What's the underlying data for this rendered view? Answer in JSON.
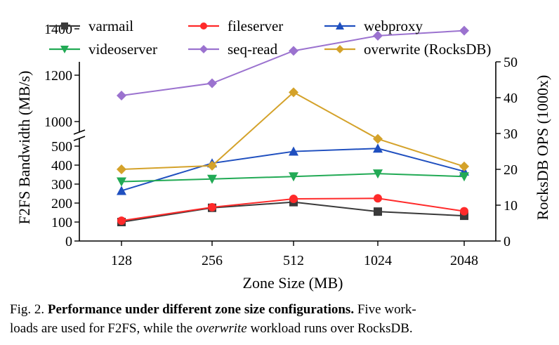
{
  "chart_data": {
    "type": "line",
    "x": [
      128,
      256,
      512,
      1024,
      2048
    ],
    "x_tick_labels": [
      "128",
      "256",
      "512",
      "1024",
      "2048"
    ],
    "xlabel": "Zone Size (MB)",
    "ylabel_left": "F2FS Bandwidth (MB/s)",
    "ylabel_right": "RocksDB OPS (1000x)",
    "y_left_lower_range": [
      0,
      520
    ],
    "y_left_upper_range": [
      950,
      1450
    ],
    "y_left_axis_break": [
      520,
      950
    ],
    "y_left_lower_ticks": [
      0,
      100,
      200,
      300,
      400,
      500
    ],
    "y_left_upper_ticks": [
      1000,
      1200,
      1400
    ],
    "y_right_range": [
      0,
      50
    ],
    "y_right_ticks": [
      0,
      10,
      20,
      30,
      40,
      50
    ],
    "legend_position": "top",
    "grid": false,
    "series": [
      {
        "name": "varmail",
        "axis": "left",
        "color": "#3a3a3a",
        "marker": "square",
        "values": [
          100,
          175,
          205,
          155,
          133
        ]
      },
      {
        "name": "fileserver",
        "axis": "left",
        "color": "#ff2a2a",
        "marker": "circle",
        "values": [
          107,
          178,
          222,
          225,
          157
        ]
      },
      {
        "name": "webproxy",
        "axis": "left",
        "color": "#1f4fbf",
        "marker": "triangle-up",
        "values": [
          265,
          410,
          472,
          488,
          367
        ]
      },
      {
        "name": "videoserver",
        "axis": "left",
        "color": "#22aa55",
        "marker": "triangle-down",
        "values": [
          313,
          327,
          340,
          355,
          340
        ]
      },
      {
        "name": "seq-read",
        "axis": "left",
        "color": "#9b72cf",
        "marker": "diamond",
        "values": [
          1112,
          1165,
          1305,
          1370,
          1392
        ]
      },
      {
        "name": "overwrite (RocksDB)",
        "axis": "right",
        "color": "#d4a22a",
        "marker": "diamond",
        "values": [
          20.0,
          21.0,
          41.5,
          28.5,
          20.8
        ]
      }
    ]
  },
  "caption": {
    "prefix": "Fig. 2.",
    "bold": "Performance under different zone size configurations.",
    "rest1": "Five work-",
    "rest2": "loads are used for F2FS, while the",
    "italic": "overwrite",
    "rest3": "workload runs over RocksDB."
  }
}
